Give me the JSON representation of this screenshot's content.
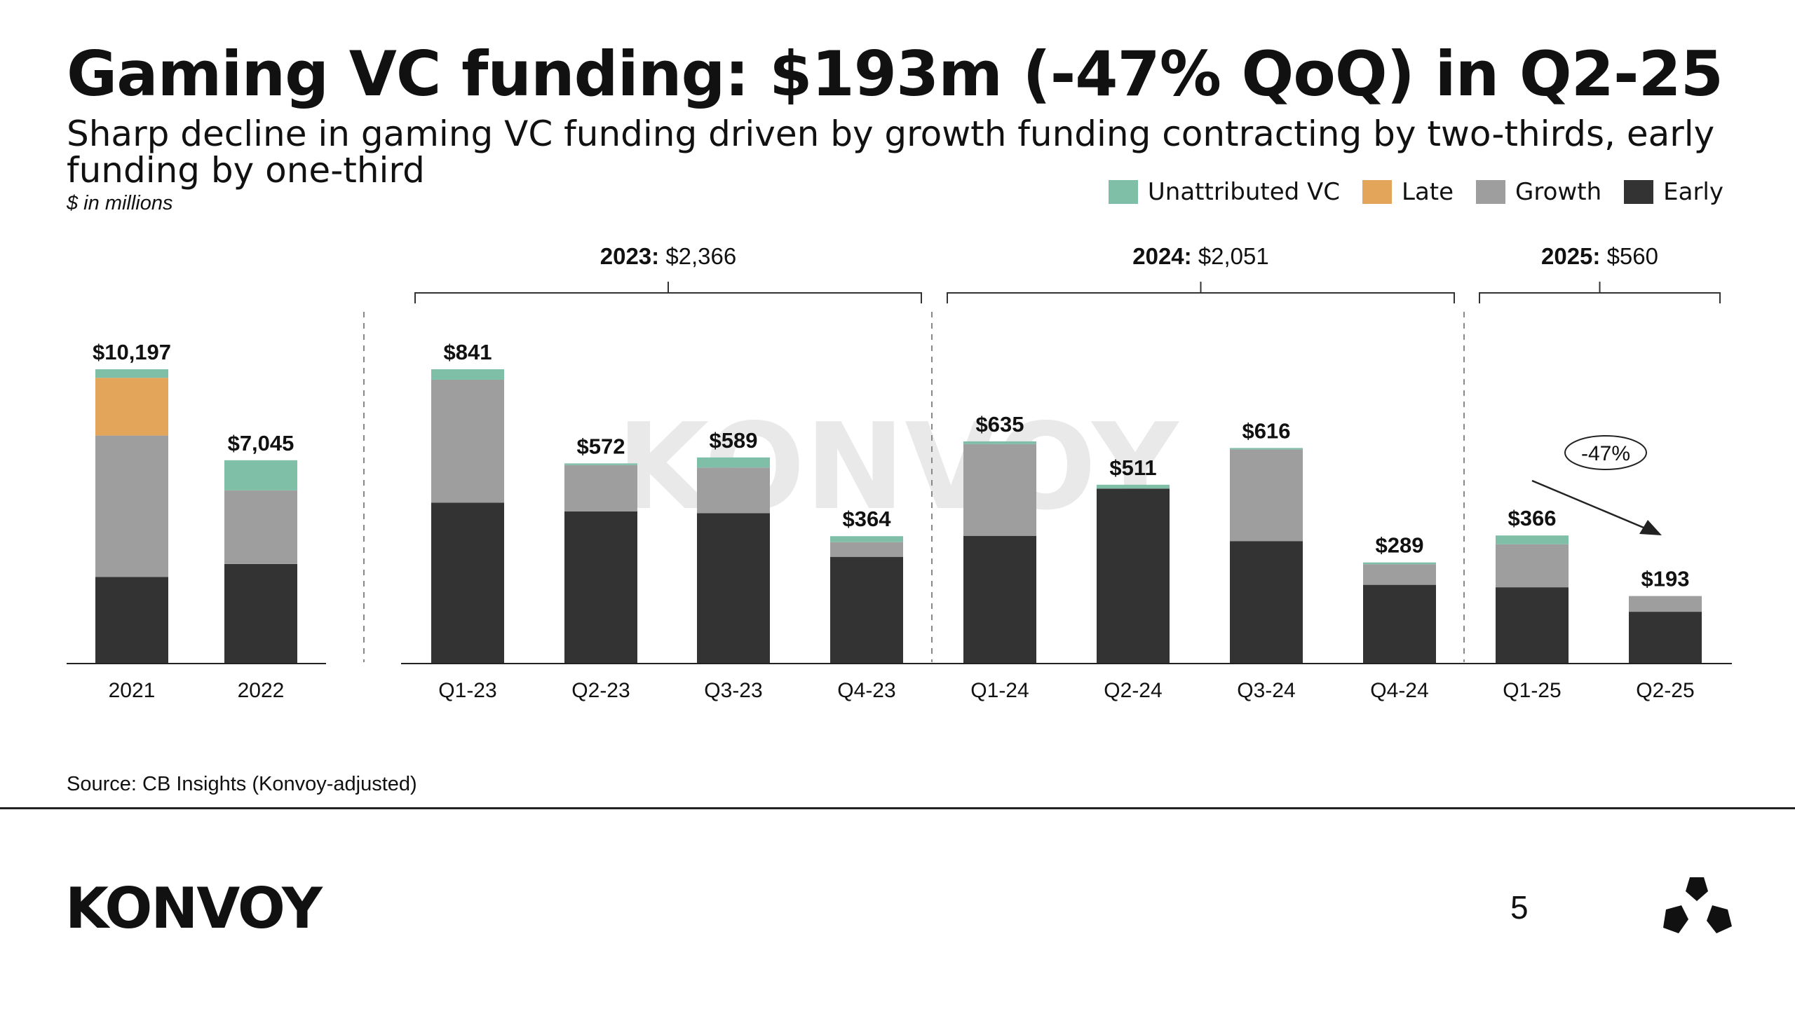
{
  "title": "Gaming VC funding: $193m (-47% QoQ) in Q2-25",
  "subtitle": "Sharp decline in gaming VC funding driven by growth funding contracting by two-thirds, early funding by one-third",
  "units": "$ in millions",
  "legend": [
    {
      "label": "Unattributed VC",
      "color": "#7fbfa8"
    },
    {
      "label": "Late",
      "color": "#e3a55a"
    },
    {
      "label": "Growth",
      "color": "#9e9e9e"
    },
    {
      "label": "Early",
      "color": "#333333"
    }
  ],
  "chart_data": {
    "type": "bar",
    "stacked": true,
    "series_order": [
      "Early",
      "Growth",
      "Late",
      "Unattributed VC"
    ],
    "colors": {
      "Early": "#333333",
      "Growth": "#9e9e9e",
      "Late": "#e3a55a",
      "Unattributed VC": "#7fbfa8"
    },
    "panels": [
      {
        "name": "annual",
        "y_max": 10197,
        "categories": [
          "2021",
          "2022"
        ],
        "totals": [
          "$10,197",
          "$7,045"
        ],
        "series": [
          {
            "name": "Early",
            "values": [
              3000,
              3450
            ]
          },
          {
            "name": "Growth",
            "values": [
              4900,
              2550
            ]
          },
          {
            "name": "Late",
            "values": [
              2000,
              0
            ]
          },
          {
            "name": "Unattributed VC",
            "values": [
              297,
              1045
            ]
          }
        ]
      },
      {
        "name": "quarterly",
        "y_max": 841,
        "categories": [
          "Q1-23",
          "Q2-23",
          "Q3-23",
          "Q4-23",
          "Q1-24",
          "Q2-24",
          "Q3-24",
          "Q4-24",
          "Q1-25",
          "Q2-25"
        ],
        "totals": [
          "$841",
          "$572",
          "$589",
          "$364",
          "$635",
          "$511",
          "$616",
          "$289",
          "$366",
          "$193"
        ],
        "series": [
          {
            "name": "Early",
            "values": [
              460,
              435,
              430,
              305,
              365,
              500,
              350,
              225,
              218,
              148
            ]
          },
          {
            "name": "Growth",
            "values": [
              351,
              132,
              130,
              42,
              262,
              0,
              262,
              59,
              123,
              45
            ]
          },
          {
            "name": "Late",
            "values": [
              0,
              0,
              0,
              0,
              0,
              0,
              0,
              0,
              0,
              0
            ]
          },
          {
            "name": "Unattributed VC",
            "values": [
              30,
              5,
              29,
              17,
              8,
              11,
              4,
              5,
              25,
              0
            ]
          }
        ]
      }
    ],
    "year_groups": [
      {
        "year": "2023:",
        "value": "$2,366",
        "first": 0,
        "last": 3
      },
      {
        "year": "2024:",
        "value": "$2,051",
        "first": 4,
        "last": 7
      },
      {
        "year": "2025:",
        "value": "$560",
        "first": 8,
        "last": 9
      }
    ],
    "annotation": {
      "text": "-47%",
      "from": "Q1-25",
      "to": "Q2-25"
    },
    "watermark": "KONVOY"
  },
  "source": "Source: CB Insights (Konvoy-adjusted)",
  "footer": {
    "logo": "KONVOY",
    "page_number": "5"
  }
}
